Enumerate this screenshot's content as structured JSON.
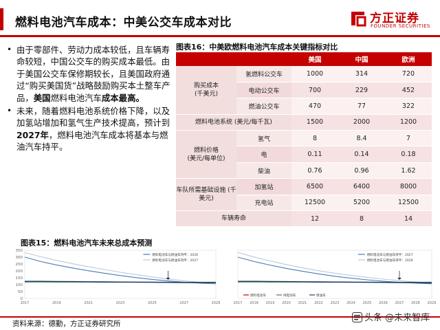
{
  "header": {
    "title": "燃料电池汽车成本：中美公交车成本对比",
    "accent_color": "#c40000"
  },
  "logo": {
    "name_cn": "方正证券",
    "name_en": "FOUNDER SECURITIES",
    "icon": "founder-logo-icon"
  },
  "bullets": [
    {
      "parts": [
        {
          "text": "由于零部件、劳动力成本较低，且车辆寿命较短，中国公交车的购买成本最低。由于美国公交车保修期较长，且美国政府通过“购买美国货”战略鼓励购买本土整车产品，",
          "bold": false
        },
        {
          "text": "美国",
          "bold": true
        },
        {
          "text": "燃料电池汽车",
          "bold": false
        },
        {
          "text": "成本最高。",
          "bold": true
        }
      ]
    },
    {
      "parts": [
        {
          "text": "未来，随着燃料电池系统价格下降，以及加氢站增加和氢气生产技术提高，预计到",
          "bold": false
        },
        {
          "text": "2027年",
          "bold": true
        },
        {
          "text": "，燃料电池汽车成本将基本与燃油汽车持平。",
          "bold": false
        }
      ]
    }
  ],
  "table": {
    "title": "图表16：中美欧燃料电池汽车成本关键指标对比",
    "columns": [
      "",
      "",
      "美国",
      "中国",
      "欧洲"
    ],
    "groups": [
      {
        "label": "购买成本\n(千美元)",
        "rows": [
          {
            "sub": "氢燃料公交车",
            "values": [
              "1000",
              "314",
              "720"
            ]
          },
          {
            "sub": "电动公交车",
            "values": [
              "700",
              "229",
              "452"
            ]
          },
          {
            "sub": "燃油公交车",
            "values": [
              "470",
              "77",
              "322"
            ]
          }
        ]
      },
      {
        "label": "燃料电池系统 (美元/每千瓦)",
        "rows": [
          {
            "sub": "",
            "values": [
              "1500",
              "2000",
              "1200"
            ]
          }
        ]
      },
      {
        "label": "燃料价格\n(美元/每单位)",
        "rows": [
          {
            "sub": "氢气",
            "values": [
              "8",
              "8.4",
              "7"
            ]
          },
          {
            "sub": "电",
            "values": [
              "0.11",
              "0.14",
              "0.18"
            ]
          },
          {
            "sub": "柴油",
            "values": [
              "0.76",
              "0.96",
              "1.62"
            ]
          }
        ]
      },
      {
        "label": "车队所需基础设施 (千美元)",
        "rows": [
          {
            "sub": "加氢站",
            "values": [
              "6500",
              "6400",
              "8000"
            ]
          },
          {
            "sub": "充电站",
            "values": [
              "12500",
              "5200",
              "12500"
            ]
          }
        ]
      },
      {
        "label": "车辆寿命",
        "rows": [
          {
            "sub": "",
            "values": [
              "12",
              "8",
              "14"
            ]
          }
        ]
      }
    ]
  },
  "charts": {
    "title": "图表15：燃料电池汽车未来总成本预测"
  },
  "chart_data": [
    {
      "type": "line",
      "x": [
        2017,
        2018,
        2019,
        2020,
        2021,
        2022,
        2023,
        2024,
        2025,
        2026,
        2027,
        2028,
        2029
      ],
      "xticks": [
        "2017",
        "2019",
        "2021",
        "2023",
        "2025",
        "2027",
        "2029"
      ],
      "ylim": [
        0,
        350
      ],
      "yticks": [
        "0",
        "50",
        "100",
        "150",
        "200",
        "250",
        "300",
        "350"
      ],
      "series": [
        {
          "name": "燃料电池车与燃油车持平：2026",
          "color": "#4a7ab5",
          "values": [
            300,
            268,
            243,
            221,
            201,
            183,
            166,
            151,
            138,
            127,
            118,
            111,
            106
          ]
        },
        {
          "name": "燃料电池车与燃油车持平：2027",
          "color": "#b8c7dc",
          "values": [
            333,
            303,
            276,
            252,
            230,
            210,
            190,
            172,
            156,
            141,
            128,
            117,
            108
          ]
        },
        {
          "name": "",
          "color": "#4a7a5a",
          "values": [
            120,
            120,
            119,
            119,
            119,
            118,
            118,
            118,
            118,
            118,
            117,
            117,
            117
          ]
        },
        {
          "name": "",
          "color": "#1f3b6b",
          "values": [
            124,
            124,
            123,
            122,
            121,
            120,
            119,
            118,
            117,
            116,
            115,
            114,
            113
          ]
        }
      ],
      "annotation": "arrow at 2026"
    },
    {
      "type": "line",
      "x": [
        2017,
        2018,
        2019,
        2020,
        2021,
        2022,
        2023,
        2024,
        2025,
        2026,
        2027,
        2028,
        2029
      ],
      "xticks": [
        "2017",
        "2018",
        "2019",
        "2020",
        "2021",
        "2022",
        "2023",
        "2024",
        "2025",
        "2026",
        "2027",
        "2028",
        "2029"
      ],
      "ylim": [
        0,
        350
      ],
      "series": [
        {
          "name": "燃料电池车与燃油车持平：2027",
          "color": "#4a7ab5",
          "values": [
            300,
            268,
            242,
            218,
            197,
            178,
            161,
            147,
            135,
            125,
            117,
            111,
            106
          ]
        },
        {
          "name": "燃料电池车与燃油车持平：2028",
          "color": "#b8c7dc",
          "values": [
            333,
            301,
            272,
            246,
            222,
            201,
            183,
            167,
            153,
            140,
            129,
            120,
            113
          ]
        },
        {
          "name": "",
          "color": "#4a7a5a",
          "values": [
            120,
            120,
            119,
            119,
            119,
            118,
            118,
            118,
            118,
            118,
            117,
            117,
            117
          ]
        },
        {
          "name": "",
          "color": "#1f3b6b",
          "values": [
            124,
            124,
            123,
            122,
            121,
            120,
            119,
            118,
            117,
            116,
            115,
            114,
            113
          ]
        }
      ],
      "legend_extra": [
        "燃料电池车",
        "纯电动车",
        "燃油车"
      ],
      "annotation": "arrow at 2027"
    }
  ],
  "footer": {
    "source": "资料来源：德勤，方正证券研究所",
    "watermark": "头条 @未来智库",
    "watermark_icon": "toutiao-icon"
  }
}
